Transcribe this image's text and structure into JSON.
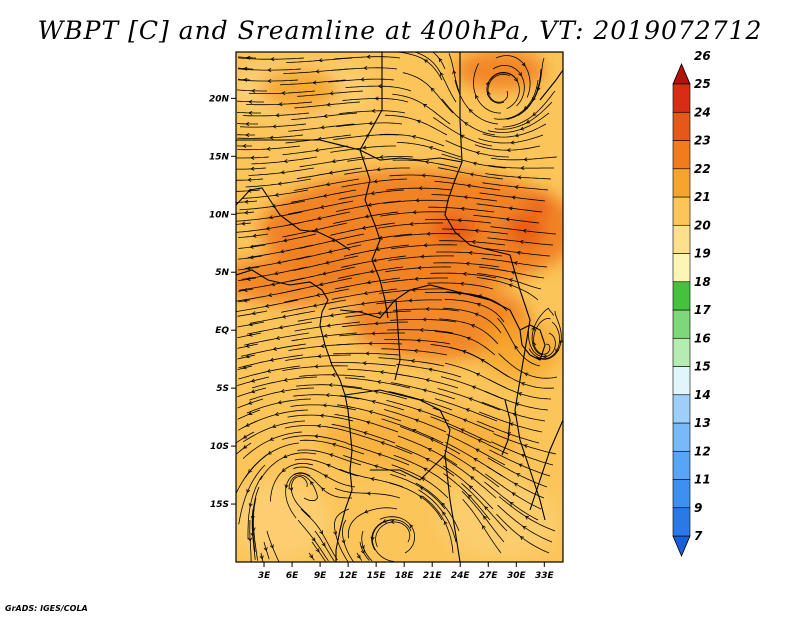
{
  "title": "WBPT [C] and Sreamline at 400hPa, VT: 2019072712",
  "credit": "GrADS: IGES/COLA",
  "map": {
    "field": "Wet-bulb potential temperature",
    "units": "C",
    "level": "400hPa",
    "valid_time": "2019072712",
    "lat_labels": [
      "20N",
      "15N",
      "10N",
      "5N",
      "EQ",
      "5S",
      "10S",
      "15S"
    ],
    "lat_values": [
      20,
      15,
      10,
      5,
      0,
      -5,
      -10,
      -15
    ],
    "lon_labels": [
      "3E",
      "6E",
      "9E",
      "12E",
      "15E",
      "18E",
      "21E",
      "24E",
      "27E",
      "30E",
      "33E"
    ],
    "lon_values": [
      3,
      6,
      9,
      12,
      15,
      18,
      21,
      24,
      27,
      30,
      33
    ],
    "lon_range": [
      0,
      35
    ],
    "lat_range": [
      -20,
      24
    ]
  },
  "colorbar": {
    "labels": [
      "7",
      "9",
      "11",
      "12",
      "13",
      "14",
      "15",
      "16",
      "17",
      "18",
      "19",
      "20",
      "21",
      "22",
      "23",
      "24",
      "25",
      "26"
    ],
    "colors": [
      "#1a5fd6",
      "#2c78e6",
      "#3f8ff0",
      "#5aa4f5",
      "#7ab9f8",
      "#9ecff9",
      "#e1f5fc",
      "#b6ebb2",
      "#7fd77c",
      "#45c13f",
      "#fcf6b6",
      "#fde08e",
      "#fbc55a",
      "#f5a52b",
      "#f07c1e",
      "#e8571a",
      "#d82d14",
      "#b0140d"
    ],
    "color_names": [
      "blue",
      "blue",
      "blue",
      "blue",
      "light-blue",
      "light-blue",
      "pale-cyan",
      "light-green",
      "green",
      "green",
      "pale-yellow",
      "light-orange",
      "orange",
      "orange",
      "dark-orange",
      "red-orange",
      "red",
      "dark-red"
    ]
  },
  "colors": {
    "background_fill": "#fbc55a",
    "warm_fill": "#f07c1e",
    "warmest_fill": "#e8571a",
    "cool_fill": "#fde08e",
    "streamline": "#000000",
    "coastline": "#000000"
  }
}
